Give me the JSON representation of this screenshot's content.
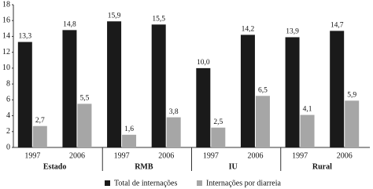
{
  "chart_data": {
    "type": "bar",
    "categories": [
      "1997",
      "2006",
      "1997",
      "2006",
      "1997",
      "2006",
      "1997",
      "2006"
    ],
    "group_labels": [
      "Estado",
      "RMB",
      "IU",
      "Rural"
    ],
    "series": [
      {
        "name": "Total de internações",
        "color": "#1a1a1a",
        "values": [
          13.3,
          14.8,
          15.9,
          15.5,
          10.0,
          14.2,
          13.9,
          14.7
        ],
        "value_labels": [
          "13,3",
          "14,8",
          "15,9",
          "15,5",
          "10,0",
          "14,2",
          "13,9",
          "14,7"
        ]
      },
      {
        "name": "Internações por diarreia",
        "color": "#a6a6a6",
        "values": [
          2.7,
          5.5,
          1.6,
          3.8,
          2.5,
          6.5,
          4.1,
          5.9
        ],
        "value_labels": [
          "2,7",
          "5,5",
          "1,6",
          "3,8",
          "2,5",
          "6,5",
          "4,1",
          "5,9"
        ]
      }
    ],
    "ylim": [
      0,
      18
    ],
    "yticks": [
      0,
      2,
      4,
      6,
      8,
      10,
      12,
      14,
      16,
      18
    ],
    "grid": false
  }
}
